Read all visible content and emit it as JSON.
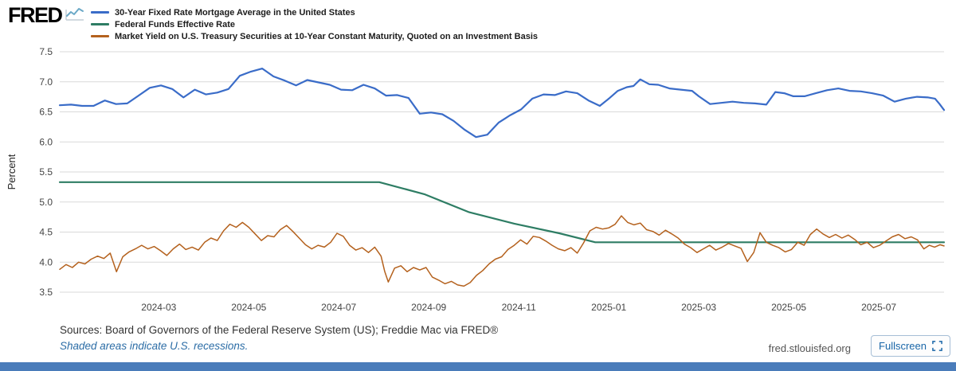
{
  "header": {
    "logo_text": "FRED",
    "fullscreen_label": "Fullscreen"
  },
  "footer": {
    "sources": "Sources: Board of Governors of the Federal Reserve System (US); Freddie Mac via FRED®",
    "recession_note": "Shaded areas indicate U.S. recessions.",
    "site_url": "fred.stlouisfed.org"
  },
  "colors": {
    "grid": "#d9d9d9",
    "bottom_bar": "#4a7cba",
    "logo_icon": "#6ba9c7",
    "fullscreen_accent": "#1966a8"
  },
  "chart_data": {
    "type": "line",
    "title": "",
    "xlabel": "",
    "ylabel": "Percent",
    "grid": true,
    "legend_position": "top-left",
    "ylim": [
      3.5,
      7.5
    ],
    "yticks": [
      7.5,
      7.0,
      6.5,
      6.0,
      5.5,
      5.0,
      4.5,
      4.0,
      3.5
    ],
    "xlim": [
      -0.2,
      19.45
    ],
    "x_unit": "months since 2024-01",
    "xticks": [
      {
        "x": 2,
        "label": "2024-03"
      },
      {
        "x": 4,
        "label": "2024-05"
      },
      {
        "x": 6,
        "label": "2024-07"
      },
      {
        "x": 8,
        "label": "2024-09"
      },
      {
        "x": 10,
        "label": "2024-11"
      },
      {
        "x": 12,
        "label": "2025-01"
      },
      {
        "x": 14,
        "label": "2025-03"
      },
      {
        "x": 16,
        "label": "2025-05"
      },
      {
        "x": 18,
        "label": "2025-07"
      }
    ],
    "series": [
      {
        "name": "30-Year Fixed Rate Mortgage Average in the United States",
        "color": "#3a6cc8",
        "width": 2.2,
        "points": [
          [
            -0.2,
            6.61
          ],
          [
            0.05,
            6.62
          ],
          [
            0.3,
            6.6
          ],
          [
            0.55,
            6.6
          ],
          [
            0.8,
            6.69
          ],
          [
            1.05,
            6.63
          ],
          [
            1.3,
            6.64
          ],
          [
            1.55,
            6.77
          ],
          [
            1.8,
            6.9
          ],
          [
            2.05,
            6.94
          ],
          [
            2.3,
            6.88
          ],
          [
            2.55,
            6.74
          ],
          [
            2.8,
            6.87
          ],
          [
            3.05,
            6.79
          ],
          [
            3.3,
            6.82
          ],
          [
            3.55,
            6.88
          ],
          [
            3.8,
            7.1
          ],
          [
            4.05,
            7.17
          ],
          [
            4.3,
            7.22
          ],
          [
            4.55,
            7.09
          ],
          [
            4.8,
            7.02
          ],
          [
            5.05,
            6.94
          ],
          [
            5.3,
            7.03
          ],
          [
            5.55,
            6.99
          ],
          [
            5.8,
            6.95
          ],
          [
            6.05,
            6.87
          ],
          [
            6.3,
            6.86
          ],
          [
            6.55,
            6.95
          ],
          [
            6.8,
            6.89
          ],
          [
            7.05,
            6.77
          ],
          [
            7.3,
            6.78
          ],
          [
            7.55,
            6.73
          ],
          [
            7.8,
            6.47
          ],
          [
            8.05,
            6.49
          ],
          [
            8.3,
            6.46
          ],
          [
            8.55,
            6.35
          ],
          [
            8.8,
            6.2
          ],
          [
            9.05,
            6.08
          ],
          [
            9.3,
            6.12
          ],
          [
            9.55,
            6.32
          ],
          [
            9.8,
            6.44
          ],
          [
            10.05,
            6.54
          ],
          [
            10.3,
            6.72
          ],
          [
            10.55,
            6.79
          ],
          [
            10.8,
            6.78
          ],
          [
            11.05,
            6.84
          ],
          [
            11.3,
            6.81
          ],
          [
            11.55,
            6.69
          ],
          [
            11.8,
            6.6
          ],
          [
            12.0,
            6.72
          ],
          [
            12.2,
            6.85
          ],
          [
            12.4,
            6.91
          ],
          [
            12.55,
            6.93
          ],
          [
            12.7,
            7.04
          ],
          [
            12.9,
            6.96
          ],
          [
            13.1,
            6.95
          ],
          [
            13.35,
            6.89
          ],
          [
            13.6,
            6.87
          ],
          [
            13.85,
            6.85
          ],
          [
            14.0,
            6.76
          ],
          [
            14.25,
            6.63
          ],
          [
            14.5,
            6.65
          ],
          [
            14.75,
            6.67
          ],
          [
            15.0,
            6.65
          ],
          [
            15.25,
            6.64
          ],
          [
            15.5,
            6.62
          ],
          [
            15.7,
            6.83
          ],
          [
            15.9,
            6.81
          ],
          [
            16.1,
            6.76
          ],
          [
            16.35,
            6.76
          ],
          [
            16.6,
            6.81
          ],
          [
            16.85,
            6.86
          ],
          [
            17.1,
            6.89
          ],
          [
            17.35,
            6.85
          ],
          [
            17.6,
            6.84
          ],
          [
            17.85,
            6.81
          ],
          [
            18.1,
            6.77
          ],
          [
            18.35,
            6.67
          ],
          [
            18.6,
            6.72
          ],
          [
            18.85,
            6.75
          ],
          [
            19.1,
            6.74
          ],
          [
            19.25,
            6.72
          ],
          [
            19.35,
            6.63
          ],
          [
            19.45,
            6.53
          ]
        ]
      },
      {
        "name": "Federal Funds Effective Rate",
        "color": "#2e7d64",
        "width": 2.2,
        "points": [
          [
            -0.2,
            5.33
          ],
          [
            6.9,
            5.33
          ],
          [
            7.9,
            5.13
          ],
          [
            8.9,
            4.83
          ],
          [
            9.9,
            4.64
          ],
          [
            10.9,
            4.48
          ],
          [
            11.7,
            4.33
          ],
          [
            19.45,
            4.33
          ]
        ]
      },
      {
        "name": "Market Yield on U.S. Treasury Securities at 10-Year Constant Maturity, Quoted on an Investment Basis",
        "color": "#b4611d",
        "width": 1.5,
        "points": [
          [
            -0.2,
            3.88
          ],
          [
            -0.06,
            3.96
          ],
          [
            0.08,
            3.91
          ],
          [
            0.22,
            4.0
          ],
          [
            0.36,
            3.97
          ],
          [
            0.5,
            4.05
          ],
          [
            0.64,
            4.1
          ],
          [
            0.78,
            4.06
          ],
          [
            0.92,
            4.15
          ],
          [
            1.06,
            3.84
          ],
          [
            1.2,
            4.09
          ],
          [
            1.34,
            4.17
          ],
          [
            1.48,
            4.22
          ],
          [
            1.62,
            4.28
          ],
          [
            1.76,
            4.22
          ],
          [
            1.9,
            4.26
          ],
          [
            2.04,
            4.19
          ],
          [
            2.18,
            4.11
          ],
          [
            2.32,
            4.22
          ],
          [
            2.46,
            4.3
          ],
          [
            2.6,
            4.21
          ],
          [
            2.74,
            4.25
          ],
          [
            2.88,
            4.2
          ],
          [
            3.02,
            4.33
          ],
          [
            3.16,
            4.4
          ],
          [
            3.3,
            4.36
          ],
          [
            3.44,
            4.52
          ],
          [
            3.58,
            4.63
          ],
          [
            3.72,
            4.58
          ],
          [
            3.86,
            4.66
          ],
          [
            4.0,
            4.58
          ],
          [
            4.14,
            4.47
          ],
          [
            4.28,
            4.36
          ],
          [
            4.42,
            4.44
          ],
          [
            4.56,
            4.42
          ],
          [
            4.7,
            4.54
          ],
          [
            4.84,
            4.61
          ],
          [
            4.98,
            4.51
          ],
          [
            5.12,
            4.4
          ],
          [
            5.26,
            4.29
          ],
          [
            5.4,
            4.22
          ],
          [
            5.54,
            4.28
          ],
          [
            5.68,
            4.25
          ],
          [
            5.82,
            4.33
          ],
          [
            5.96,
            4.48
          ],
          [
            6.1,
            4.43
          ],
          [
            6.24,
            4.28
          ],
          [
            6.38,
            4.2
          ],
          [
            6.52,
            4.24
          ],
          [
            6.66,
            4.16
          ],
          [
            6.8,
            4.25
          ],
          [
            6.94,
            4.1
          ],
          [
            7.02,
            3.85
          ],
          [
            7.1,
            3.67
          ],
          [
            7.24,
            3.9
          ],
          [
            7.38,
            3.94
          ],
          [
            7.52,
            3.84
          ],
          [
            7.66,
            3.91
          ],
          [
            7.8,
            3.87
          ],
          [
            7.94,
            3.91
          ],
          [
            8.08,
            3.75
          ],
          [
            8.22,
            3.7
          ],
          [
            8.36,
            3.64
          ],
          [
            8.5,
            3.68
          ],
          [
            8.64,
            3.62
          ],
          [
            8.78,
            3.6
          ],
          [
            8.92,
            3.66
          ],
          [
            9.06,
            3.78
          ],
          [
            9.2,
            3.86
          ],
          [
            9.34,
            3.97
          ],
          [
            9.48,
            4.05
          ],
          [
            9.62,
            4.09
          ],
          [
            9.76,
            4.21
          ],
          [
            9.9,
            4.28
          ],
          [
            10.04,
            4.37
          ],
          [
            10.18,
            4.3
          ],
          [
            10.32,
            4.43
          ],
          [
            10.46,
            4.41
          ],
          [
            10.6,
            4.35
          ],
          [
            10.74,
            4.28
          ],
          [
            10.88,
            4.22
          ],
          [
            11.02,
            4.19
          ],
          [
            11.16,
            4.24
          ],
          [
            11.3,
            4.15
          ],
          [
            11.44,
            4.32
          ],
          [
            11.58,
            4.52
          ],
          [
            11.72,
            4.58
          ],
          [
            11.86,
            4.55
          ],
          [
            12.0,
            4.57
          ],
          [
            12.14,
            4.63
          ],
          [
            12.28,
            4.77
          ],
          [
            12.42,
            4.66
          ],
          [
            12.56,
            4.62
          ],
          [
            12.7,
            4.65
          ],
          [
            12.84,
            4.54
          ],
          [
            12.98,
            4.51
          ],
          [
            13.12,
            4.45
          ],
          [
            13.26,
            4.53
          ],
          [
            13.4,
            4.47
          ],
          [
            13.54,
            4.4
          ],
          [
            13.68,
            4.3
          ],
          [
            13.82,
            4.24
          ],
          [
            13.96,
            4.16
          ],
          [
            14.1,
            4.22
          ],
          [
            14.24,
            4.28
          ],
          [
            14.38,
            4.2
          ],
          [
            14.52,
            4.25
          ],
          [
            14.66,
            4.31
          ],
          [
            14.8,
            4.27
          ],
          [
            14.94,
            4.23
          ],
          [
            15.08,
            4.01
          ],
          [
            15.22,
            4.16
          ],
          [
            15.36,
            4.49
          ],
          [
            15.5,
            4.33
          ],
          [
            15.64,
            4.28
          ],
          [
            15.78,
            4.24
          ],
          [
            15.92,
            4.17
          ],
          [
            16.06,
            4.21
          ],
          [
            16.2,
            4.33
          ],
          [
            16.34,
            4.28
          ],
          [
            16.48,
            4.46
          ],
          [
            16.62,
            4.55
          ],
          [
            16.76,
            4.47
          ],
          [
            16.9,
            4.41
          ],
          [
            17.04,
            4.46
          ],
          [
            17.18,
            4.4
          ],
          [
            17.32,
            4.45
          ],
          [
            17.46,
            4.38
          ],
          [
            17.6,
            4.29
          ],
          [
            17.74,
            4.33
          ],
          [
            17.88,
            4.24
          ],
          [
            18.02,
            4.28
          ],
          [
            18.16,
            4.35
          ],
          [
            18.3,
            4.42
          ],
          [
            18.44,
            4.46
          ],
          [
            18.58,
            4.39
          ],
          [
            18.72,
            4.42
          ],
          [
            18.86,
            4.37
          ],
          [
            19.0,
            4.22
          ],
          [
            19.12,
            4.28
          ],
          [
            19.24,
            4.25
          ],
          [
            19.36,
            4.29
          ],
          [
            19.45,
            4.27
          ]
        ]
      }
    ]
  }
}
